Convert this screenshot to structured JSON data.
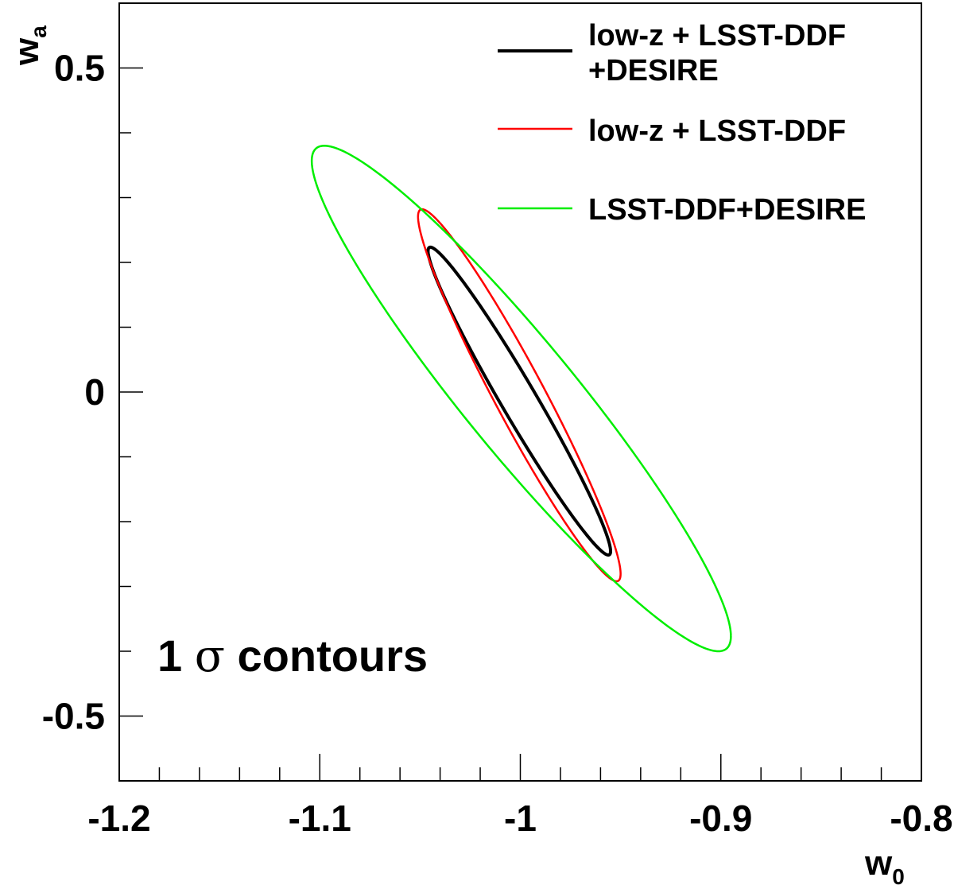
{
  "chart_data": {
    "type": "line",
    "xlim": [
      -1.2,
      -0.8
    ],
    "ylim": [
      -0.6,
      0.6
    ],
    "x_ticks": [
      "-1.2",
      "-1.1",
      "-1",
      "-0.9",
      "-0.8"
    ],
    "x_tick_values": [
      -1.2,
      -1.1,
      -1.0,
      -0.9,
      -0.8
    ],
    "y_ticks": [
      "0.5",
      "0",
      "-0.5"
    ],
    "y_tick_values": [
      0.5,
      0.0,
      -0.5
    ],
    "x_minor_step": 0.02,
    "y_minor_step": 0.1,
    "xlabel": "w",
    "xlabel_sub": "0",
    "ylabel": "w",
    "ylabel_sub": "a",
    "grid": false,
    "legend_position": "top-right",
    "annotation": {
      "number": "1",
      "symbol": "σ",
      "text": "contours"
    },
    "series": [
      {
        "name_lines": [
          "low-z + LSST-DDF",
          "+DESIRE"
        ],
        "color": "#000000",
        "center": [
          -1.0005,
          -0.014
        ],
        "x_extent": 0.0455,
        "y_extent": 0.2375,
        "rho": -0.975
      },
      {
        "name_lines": [
          "low-z + LSST-DDF"
        ],
        "color": "#ff0000",
        "center": [
          -1.0005,
          -0.005
        ],
        "x_extent": 0.0505,
        "y_extent": 0.287,
        "rho": -0.96
      },
      {
        "name_lines": [
          "LSST-DDF+DESIRE"
        ],
        "color": "#00ee00",
        "center": [
          -0.9995,
          -0.01
        ],
        "x_extent": 0.1045,
        "y_extent": 0.39,
        "rho": -0.94
      }
    ]
  }
}
